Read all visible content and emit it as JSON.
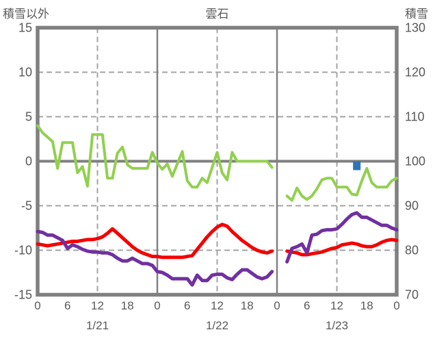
{
  "chart_data": {
    "type": "line",
    "title": "雲石",
    "left_axis": {
      "title": "積雪以外",
      "min": -15,
      "max": 15,
      "ticks": [
        15,
        10,
        5,
        0,
        -5,
        -10,
        -15
      ]
    },
    "right_axis": {
      "title": "積雪",
      "min": 70,
      "max": 130,
      "ticks": [
        130,
        120,
        110,
        100,
        90,
        80,
        70
      ]
    },
    "x_axis": {
      "hours_total": 72,
      "tick_interval_hours": 6,
      "hour_labels": [
        "0",
        "6",
        "12",
        "18",
        "0",
        "6",
        "12",
        "18",
        "0",
        "6",
        "12",
        "18",
        "0"
      ],
      "date_labels": [
        "1/21",
        "1/22",
        "1/23"
      ]
    },
    "grid": {
      "frame_color": "#808080",
      "gridline_color": "#A3A3A3",
      "zero_line_color": "#808080",
      "day_boundary_color": "#808080",
      "gridlines_dashed": true
    },
    "series": [
      {
        "name": "green-line",
        "axis": "left",
        "color": "#92D050",
        "line_width": 4,
        "values": [
          4.0,
          3.2,
          2.7,
          2.2,
          -0.8,
          2.1,
          2.1,
          2.1,
          -1.3,
          -0.6,
          -2.8,
          3.0,
          3.0,
          3.0,
          -1.9,
          -1.9,
          0.9,
          1.6,
          -0.4,
          -0.8,
          -0.8,
          -0.8,
          -0.8,
          1.0,
          -0.2,
          -0.9,
          -0.3,
          -1.7,
          -0.3,
          1.1,
          -2.2,
          -2.9,
          -2.9,
          -1.9,
          -2.4,
          -0.7,
          1.0,
          -1.3,
          -2.1,
          1.0,
          0.0,
          0.0,
          0.0,
          0.0,
          0.0,
          0.0,
          0.0,
          -0.7,
          null,
          null,
          -3.9,
          -4.4,
          -3.0,
          -3.9,
          -4.3,
          -3.9,
          -3.1,
          -2.1,
          -1.9,
          -1.9,
          -2.9,
          -2.9,
          -2.9,
          -3.7,
          -3.8,
          -2.2,
          -0.8,
          -2.4,
          -2.9,
          -2.9,
          -2.9,
          -2.2,
          -1.9
        ]
      },
      {
        "name": "red-line",
        "axis": "left",
        "color": "#F40000",
        "line_width": 5,
        "values": [
          -9.3,
          -9.4,
          -9.5,
          -9.4,
          -9.3,
          -9.2,
          -9.1,
          -9.0,
          -9.0,
          -8.9,
          -8.8,
          -8.8,
          -8.7,
          -8.5,
          -8.1,
          -7.6,
          -8.1,
          -8.6,
          -9.1,
          -9.6,
          -10.0,
          -10.3,
          -10.5,
          -10.7,
          -10.7,
          -10.8,
          -10.8,
          -10.8,
          -10.8,
          -10.8,
          -10.7,
          -10.6,
          -9.9,
          -9.2,
          -8.5,
          -7.9,
          -7.4,
          -7.1,
          -7.3,
          -7.9,
          -8.4,
          -8.9,
          -9.3,
          -9.7,
          -10.0,
          -10.2,
          -10.3,
          -10.1,
          null,
          null,
          -10.1,
          -10.2,
          -10.3,
          -10.5,
          -10.5,
          -10.4,
          -10.3,
          -10.2,
          -10.0,
          -9.8,
          -9.7,
          -9.4,
          -9.3,
          -9.2,
          -9.3,
          -9.5,
          -9.6,
          -9.6,
          -9.4,
          -9.1,
          -8.9,
          -8.8,
          -8.9
        ]
      },
      {
        "name": "purple-line",
        "axis": "left",
        "color": "#7030A0",
        "line_width": 5,
        "values": [
          -7.9,
          -8.0,
          -8.3,
          -8.3,
          -8.6,
          -8.9,
          -9.8,
          -9.4,
          -9.6,
          -9.9,
          -10.1,
          -10.2,
          -10.2,
          -10.3,
          -10.3,
          -10.5,
          -10.9,
          -11.2,
          -11.2,
          -10.9,
          -11.2,
          -11.5,
          -11.5,
          -11.7,
          -12.4,
          -12.5,
          -12.8,
          -13.2,
          -13.2,
          -13.2,
          -13.2,
          -13.9,
          -12.8,
          -13.4,
          -13.4,
          -12.8,
          -12.7,
          -12.7,
          -13.1,
          -13.3,
          -12.7,
          -12.2,
          -12.2,
          -12.6,
          -13.0,
          -13.2,
          -13.0,
          -12.4,
          null,
          null,
          -11.3,
          -9.8,
          -9.6,
          -9.3,
          -10.3,
          -8.3,
          -8.2,
          -7.8,
          -7.7,
          -7.7,
          -7.6,
          -7.1,
          -6.5,
          -6.0,
          -5.8,
          -6.3,
          -6.3,
          -6.6,
          -6.9,
          -7.2,
          -7.2,
          -7.5,
          -7.7
        ]
      },
      {
        "name": "blue-square-marker",
        "axis": "right",
        "type": "point",
        "color": "#2E75B6",
        "points": [
          {
            "hour_index": 64,
            "value": 99
          }
        ]
      }
    ]
  }
}
